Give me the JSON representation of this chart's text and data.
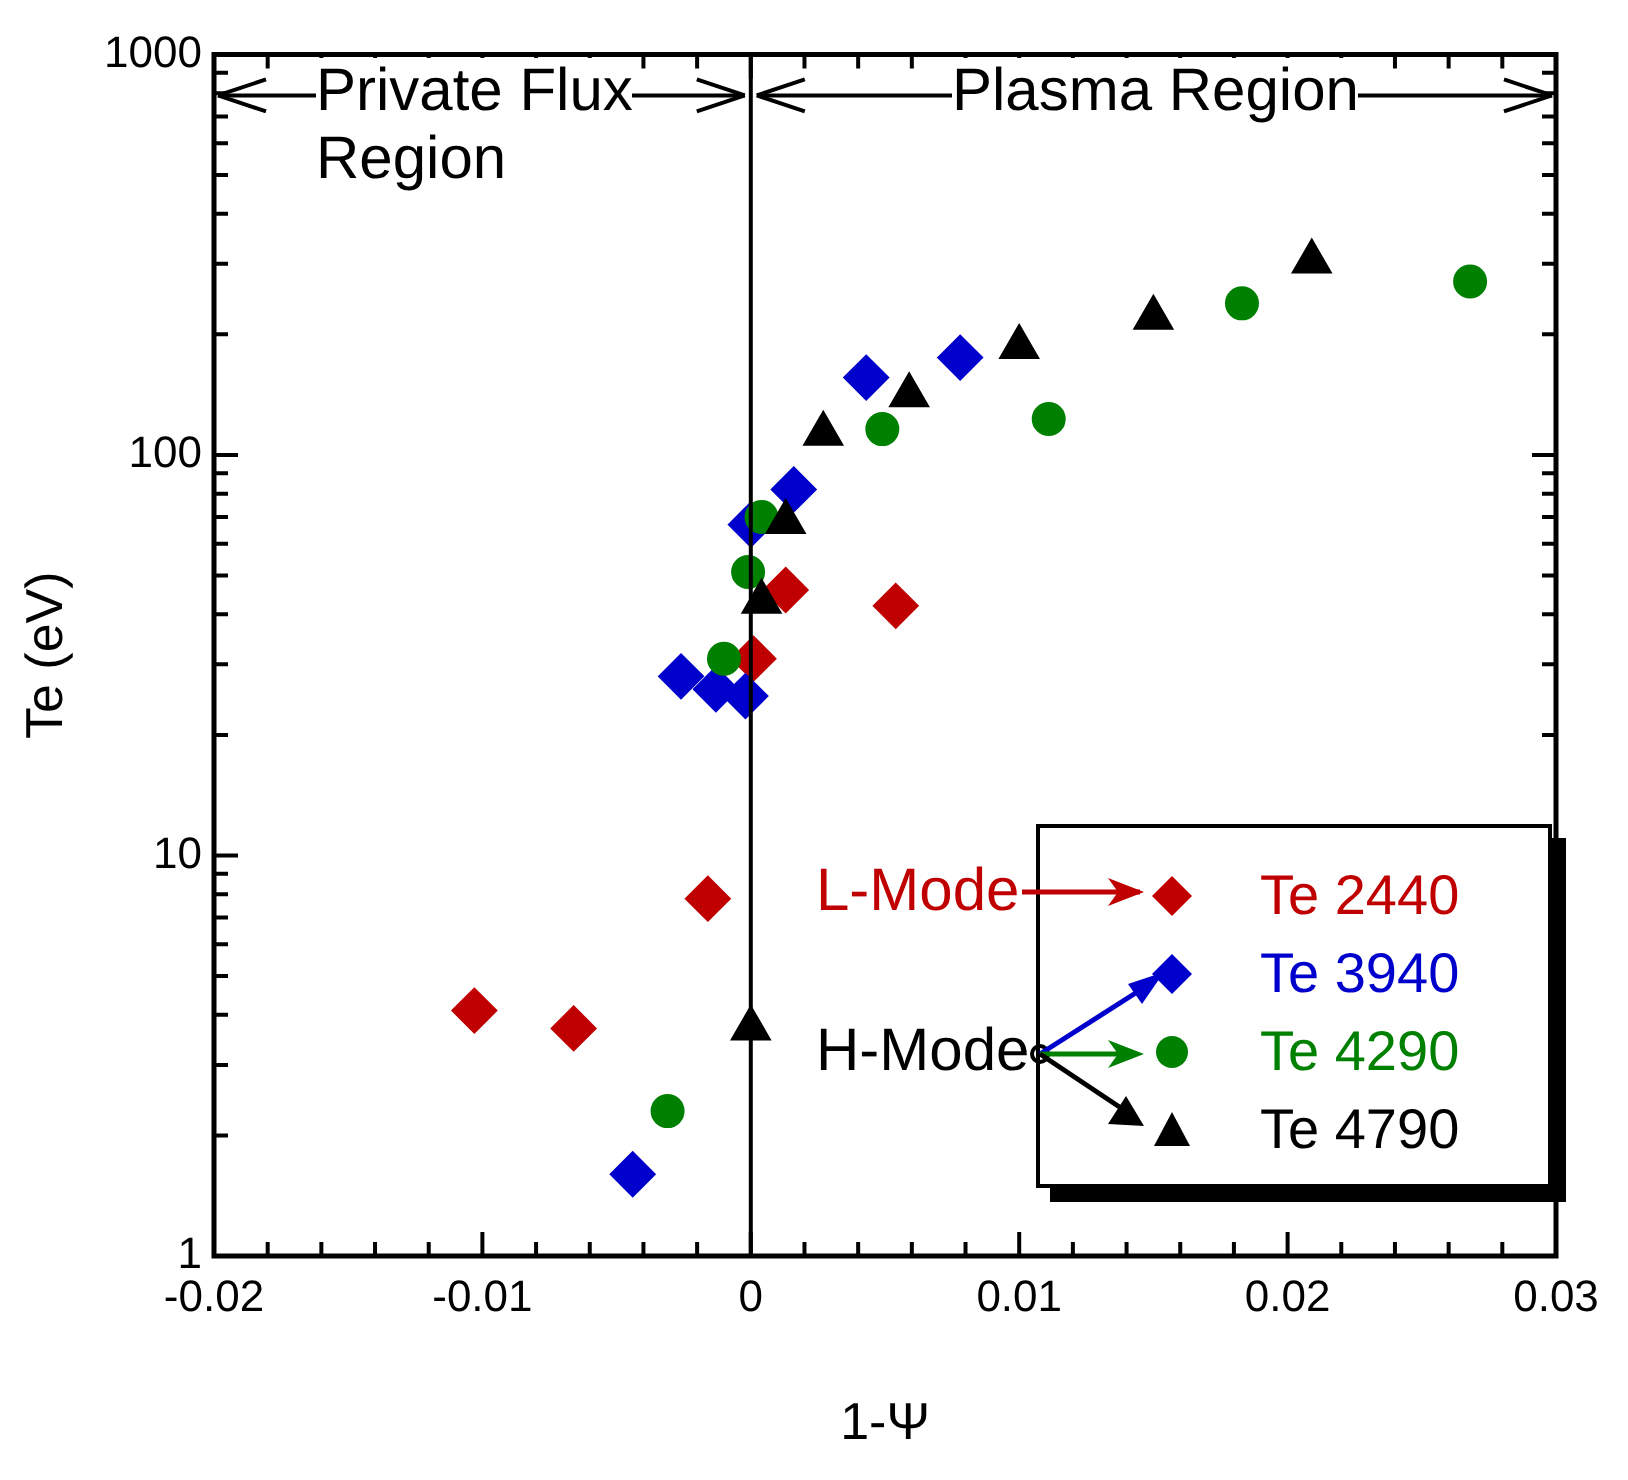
{
  "chart_data": {
    "type": "scatter",
    "xlabel": "1-Ψ",
    "ylabel": "Te (eV)",
    "log": "y",
    "legend": "bottom right",
    "xlim": [
      -0.02,
      0.03
    ],
    "ylim": [
      1,
      1000
    ],
    "xticks": [
      -0.02,
      {
        "value": -0.018,
        "label": null
      },
      {
        "value": -0.016,
        "label": null
      },
      {
        "value": -0.014,
        "label": null
      },
      {
        "value": -0.012,
        "label": null
      },
      -0.01,
      {
        "value": -0.008,
        "label": null
      },
      {
        "value": -0.006,
        "label": null
      },
      {
        "value": -0.004,
        "label": null
      },
      {
        "value": -0.002,
        "label": null
      },
      0,
      {
        "value": 0.002,
        "label": null
      },
      {
        "value": 0.004,
        "label": null
      },
      {
        "value": 0.006,
        "label": null
      },
      {
        "value": 0.008,
        "label": null
      },
      0.01,
      {
        "value": 0.012,
        "label": null
      },
      {
        "value": 0.014,
        "label": null
      },
      {
        "value": 0.016,
        "label": null
      },
      {
        "value": 0.018,
        "label": null
      },
      0.02,
      {
        "value": 0.022,
        "label": null
      },
      {
        "value": 0.024,
        "label": null
      },
      {
        "value": 0.026,
        "label": null
      },
      {
        "value": 0.028,
        "label": null
      },
      0.03
    ],
    "yticks": [
      1,
      {
        "value": 2,
        "label": null
      },
      {
        "value": 3,
        "label": null
      },
      {
        "value": 4,
        "label": null
      },
      {
        "value": 5,
        "label": null
      },
      {
        "value": 6,
        "label": null
      },
      {
        "value": 7,
        "label": null
      },
      {
        "value": 8,
        "label": null
      },
      {
        "value": 9,
        "label": null
      },
      10,
      {
        "value": 20,
        "label": null
      },
      {
        "value": 30,
        "label": null
      },
      {
        "value": 40,
        "label": null
      },
      {
        "value": 50,
        "label": null
      },
      {
        "value": 60,
        "label": null
      },
      {
        "value": 70,
        "label": null
      },
      {
        "value": 80,
        "label": null
      },
      {
        "value": 90,
        "label": null
      },
      100,
      {
        "value": 200,
        "label": null
      },
      {
        "value": 300,
        "label": null
      },
      {
        "value": 400,
        "label": null
      },
      {
        "value": 500,
        "label": null
      },
      {
        "value": 600,
        "label": null
      },
      {
        "value": 700,
        "label": null
      },
      {
        "value": 800,
        "label": null
      },
      {
        "value": 900,
        "label": null
      },
      1000
    ],
    "ref_lines": [
      {
        "axis": "x",
        "value": 0,
        "color": "#000000"
      }
    ],
    "annotations": [
      {
        "text": "Private Flux Region",
        "x": 0,
        "y": 790
      },
      "Plasma Region",
      "L-Mode",
      "H-Mode"
    ],
    "series": [
      {
        "name": "Te 2440",
        "color": "#c00000",
        "marker": "diamond",
        "x": [
          -0.0103,
          -0.0066,
          -0.0016,
          0.0001,
          0.0013,
          0.0054
        ],
        "values": [
          4.1,
          3.7,
          7.8,
          31,
          46,
          42
        ]
      },
      {
        "name": "Te 3940",
        "color": "#0000cc",
        "marker": "diamond",
        "x": [
          -0.0044,
          -0.0026,
          -0.0013,
          -0.0002,
          0,
          0.0016,
          0.0043,
          0.0078
        ],
        "values": [
          1.6,
          28,
          26,
          25,
          67,
          82,
          156,
          175
        ]
      },
      {
        "name": "Te 4290",
        "color": "#008000",
        "marker": "circle",
        "x": [
          -0.0031,
          -0.001,
          -0.0001,
          0.0004,
          0.0049,
          0.0111,
          0.0183,
          0.0268
        ],
        "values": [
          2.3,
          31,
          51,
          70,
          116,
          123,
          239,
          271
        ]
      },
      {
        "name": "Te 4790",
        "color": "#000000",
        "marker": "triangle",
        "x": [
          0,
          0.0004,
          0.0013,
          0.0027,
          0.0059,
          0.01,
          0.015,
          0.0209
        ],
        "values": [
          3.7,
          43,
          68,
          113,
          141,
          186,
          220,
          304
        ]
      }
    ]
  }
}
